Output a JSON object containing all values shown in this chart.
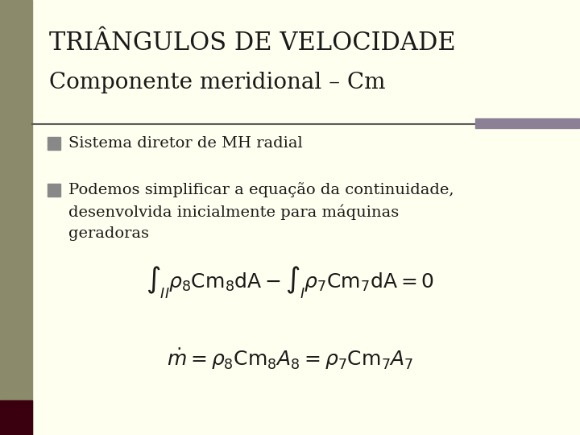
{
  "bg_color": "#FFFFF0",
  "left_bar_color": "#8B8B6B",
  "left_bar_dark": "#3B0010",
  "title_line1": "TRIÂNGULOS DE VELOCIDADE",
  "title_line2": "Componente meridional – Cm",
  "title_color": "#1a1a1a",
  "title_fontsize": 22,
  "subtitle_fontsize": 20,
  "separator_color": "#5a5a5a",
  "bullet_color": "#888888",
  "bullet1": "Sistema diretor de MH radial",
  "bullet2_line1": "Podemos simplificar a equação da continuidade,",
  "bullet2_line2": "desenvolvida inicialmente para máquinas",
  "bullet2_line3": "geradoras",
  "body_fontsize": 14,
  "eq_fontsize": 18,
  "sep_rect_color": "#8B8096"
}
